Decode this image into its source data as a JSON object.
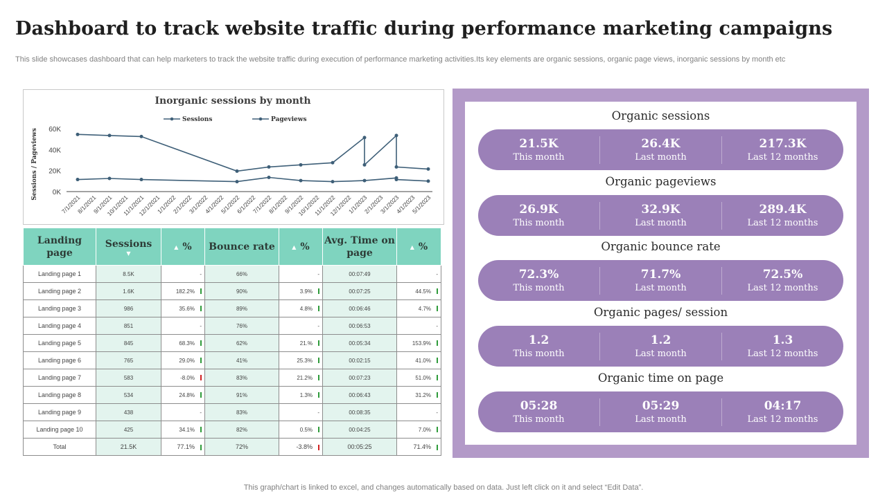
{
  "page": {
    "title": "Dashboard to track website traffic during performance marketing campaigns",
    "subtitle": "This slide showcases dashboard that can help marketers to track the website traffic during execution of performance marketing activities.Its key elements are organic sessions, organic page views, inorganic sessions by month etc",
    "footer": "This graph/chart is linked to excel, and changes automatically based on data. Just left click on it and select “Edit Data”."
  },
  "chart_data": {
    "type": "line",
    "title": "Inorganic sessions by month",
    "ylabel": "Sessions / Pageviews",
    "xlabel": "",
    "ylim": [
      0,
      60000
    ],
    "yticks": [
      "0K",
      "20K",
      "40K",
      "60K"
    ],
    "grid": false,
    "legend_position": "top",
    "categories": [
      "7/1/2021",
      "8/1/2021",
      "9/1/2021",
      "10/1/2021",
      "11/1/2021",
      "12/1/2021",
      "1/1/2022",
      "2/1/2022",
      "3/1/2022",
      "4/1/2022",
      "5/1/2022",
      "6/1/2022",
      "7/1/2022",
      "8/1/2022",
      "9/1/2022",
      "10/1/2022",
      "11/1/2022",
      "12/1/2022",
      "1/1/2023",
      "2/1/2023",
      "3/1/2023",
      "4/1/2023",
      "5/1/2023"
    ],
    "series": [
      {
        "name": "Sessions",
        "color": "#3e5f78",
        "points": [
          {
            "x": "7/1/2021",
            "y": 11500
          },
          {
            "x": "9/1/2021",
            "y": 12500
          },
          {
            "x": "11/1/2021",
            "y": 11500
          },
          {
            "x": "5/1/2022",
            "y": 9500
          },
          {
            "x": "7/1/2022",
            "y": 13500
          },
          {
            "x": "9/1/2022",
            "y": 10500
          },
          {
            "x": "11/1/2022",
            "y": 9500
          },
          {
            "x": "1/1/2023",
            "y": 10500
          },
          {
            "x": "3/1/2023",
            "y": 13000
          },
          {
            "x": "3/1/2023",
            "y": 11500
          },
          {
            "x": "5/1/2023",
            "y": 10000
          }
        ]
      },
      {
        "name": "Pageviews",
        "color": "#3e5f78",
        "points": [
          {
            "x": "7/1/2021",
            "y": 54500
          },
          {
            "x": "9/1/2021",
            "y": 53500
          },
          {
            "x": "11/1/2021",
            "y": 52500
          },
          {
            "x": "5/1/2022",
            "y": 19500
          },
          {
            "x": "7/1/2022",
            "y": 23500
          },
          {
            "x": "9/1/2022",
            "y": 25500
          },
          {
            "x": "11/1/2022",
            "y": 27500
          },
          {
            "x": "1/1/2023",
            "y": 51500
          },
          {
            "x": "1/1/2023",
            "y": 25500
          },
          {
            "x": "3/1/2023",
            "y": 53500
          },
          {
            "x": "3/1/2023",
            "y": 23500
          },
          {
            "x": "5/1/2023",
            "y": 21500
          }
        ]
      }
    ]
  },
  "table": {
    "headers": {
      "landing_page": "Landing page",
      "sessions": "Sessions",
      "sessions_pct": "%",
      "bounce_rate": "Bounce rate",
      "bounce_pct": "%",
      "avg_time": "Avg. Time on page",
      "time_pct": "%"
    },
    "sort_up_glyph": "▲",
    "sort_down_glyph": "▼",
    "rows": [
      {
        "page": "Landing page 1",
        "sessions": "8.5K",
        "s_pct": "-",
        "s_trend": "none",
        "bounce": "66%",
        "b_pct": "-",
        "b_trend": "none",
        "time": "00:07:49",
        "t_pct": "-",
        "t_trend": "none"
      },
      {
        "page": "Landing page 2",
        "sessions": "1.6K",
        "s_pct": "182.2%",
        "s_trend": "up",
        "bounce": "90%",
        "b_pct": "3.9%",
        "b_trend": "up",
        "time": "00:07:25",
        "t_pct": "44.5%",
        "t_trend": "up"
      },
      {
        "page": "Landing page 3",
        "sessions": "986",
        "s_pct": "35.6%",
        "s_trend": "up",
        "bounce": "89%",
        "b_pct": "4.8%",
        "b_trend": "up",
        "time": "00:06:46",
        "t_pct": "4.7%",
        "t_trend": "up"
      },
      {
        "page": "Landing page 4",
        "sessions": "851",
        "s_pct": "-",
        "s_trend": "none",
        "bounce": "76%",
        "b_pct": "-",
        "b_trend": "none",
        "time": "00:06:53",
        "t_pct": "-",
        "t_trend": "none"
      },
      {
        "page": "Landing page 5",
        "sessions": "845",
        "s_pct": "68.3%",
        "s_trend": "up",
        "bounce": "62%",
        "b_pct": "21.%",
        "b_trend": "up",
        "time": "00:05:34",
        "t_pct": "153.9%",
        "t_trend": "up"
      },
      {
        "page": "Landing page 6",
        "sessions": "765",
        "s_pct": "29.0%",
        "s_trend": "up",
        "bounce": "41%",
        "b_pct": "25.3%",
        "b_trend": "up",
        "time": "00:02:15",
        "t_pct": "41.0%",
        "t_trend": "up"
      },
      {
        "page": "Landing page 7",
        "sessions": "583",
        "s_pct": "-8.0%",
        "s_trend": "down",
        "bounce": "83%",
        "b_pct": "21.2%",
        "b_trend": "up",
        "time": "00:07:23",
        "t_pct": "51.0%",
        "t_trend": "up"
      },
      {
        "page": "Landing page 8",
        "sessions": "534",
        "s_pct": "24.8%",
        "s_trend": "up",
        "bounce": "91%",
        "b_pct": "1.3%",
        "b_trend": "up",
        "time": "00:06:43",
        "t_pct": "31.2%",
        "t_trend": "up"
      },
      {
        "page": "Landing page 9",
        "sessions": "438",
        "s_pct": "-",
        "s_trend": "none",
        "bounce": "83%",
        "b_pct": "-",
        "b_trend": "none",
        "time": "00:08:35",
        "t_pct": "-",
        "t_trend": "none"
      },
      {
        "page": "Landing page 10",
        "sessions": "425",
        "s_pct": "34.1%",
        "s_trend": "up",
        "bounce": "82%",
        "b_pct": "0.5%",
        "b_trend": "up",
        "time": "00:04:25",
        "t_pct": "7.0%",
        "t_trend": "up"
      }
    ],
    "total": {
      "page": "Total",
      "sessions": "21.5K",
      "s_pct": "77.1%",
      "s_trend": "up",
      "bounce": "72%",
      "b_pct": "-3.8%",
      "b_trend": "down",
      "time": "00:05:25",
      "t_pct": "71.4%",
      "t_trend": "up"
    }
  },
  "kpis": [
    {
      "title": "Organic sessions",
      "cells": [
        {
          "value": "21.5K",
          "label": "This month"
        },
        {
          "value": "26.4K",
          "label": "Last month"
        },
        {
          "value": "217.3K",
          "label": "Last 12 months"
        }
      ]
    },
    {
      "title": "Organic pageviews",
      "cells": [
        {
          "value": "26.9K",
          "label": "This month"
        },
        {
          "value": "32.9K",
          "label": "Last month"
        },
        {
          "value": "289.4K",
          "label": "Last 12 months"
        }
      ]
    },
    {
      "title": "Organic bounce rate",
      "cells": [
        {
          "value": "72.3%",
          "label": "This month"
        },
        {
          "value": "71.7%",
          "label": "Last month"
        },
        {
          "value": "72.5%",
          "label": "Last 12 months"
        }
      ]
    },
    {
      "title": "Organic pages/ session",
      "cells": [
        {
          "value": "1.2",
          "label": "This month"
        },
        {
          "value": "1.2",
          "label": "Last month"
        },
        {
          "value": "1.3",
          "label": "Last 12 months"
        }
      ]
    },
    {
      "title": "Organic time on page",
      "cells": [
        {
          "value": "05:28",
          "label": "This month"
        },
        {
          "value": "05:29",
          "label": "Last month"
        },
        {
          "value": "04:17",
          "label": "Last 12 months"
        }
      ]
    }
  ],
  "colors": {
    "table_header": "#7fd4bf",
    "table_alt": "#e3f4ee",
    "kpi_frame": "#b39ac8",
    "kpi_pill": "#9b80b8",
    "line": "#3e5f78",
    "trend_up": "#2e9b3a",
    "trend_down": "#d02020"
  }
}
